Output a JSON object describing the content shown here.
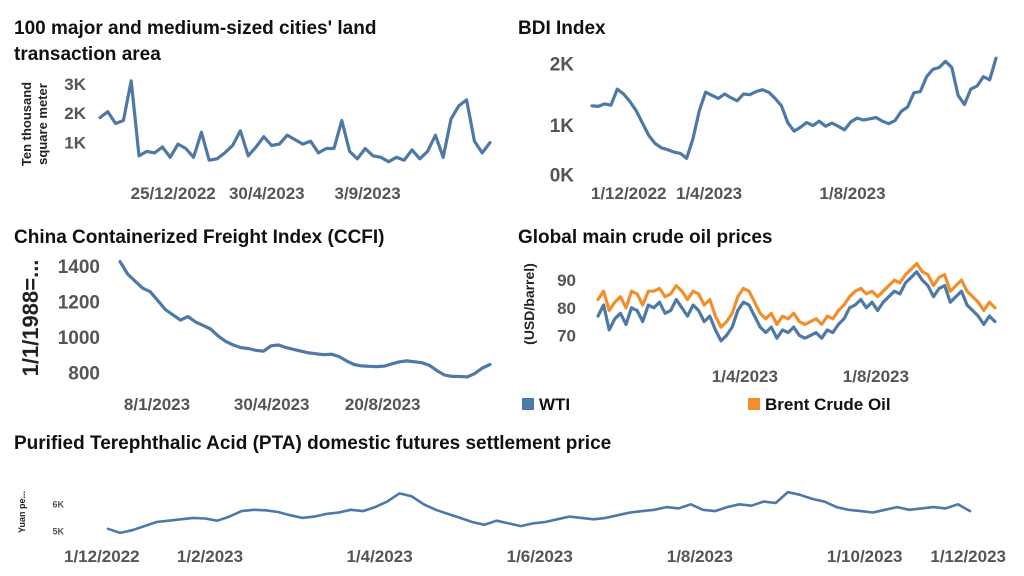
{
  "colors": {
    "blue": "#4e79a7",
    "orange": "#f28e2b"
  },
  "chart_data": [
    {
      "id": "land",
      "type": "line",
      "title": "100 major and medium-sized cities' land transaction area",
      "ylabel": "Ten thousand square meter",
      "yticks": [
        {
          "v": 3000,
          "label": "3K"
        },
        {
          "v": 2000,
          "label": "2K"
        },
        {
          "v": 1000,
          "label": "1K"
        }
      ],
      "xticks": [
        {
          "t": 0.12,
          "label": "25/12/2022"
        },
        {
          "t": 0.38,
          "label": "30/4/2023"
        },
        {
          "t": 0.66,
          "label": "3/9/2023"
        }
      ],
      "ylim": [
        0,
        3400
      ],
      "series": [
        {
          "color": "#4e79a7",
          "values": [
            1850,
            2050,
            1650,
            1750,
            3100,
            550,
            700,
            650,
            850,
            500,
            950,
            800,
            500,
            1350,
            400,
            450,
            650,
            900,
            1400,
            550,
            850,
            1200,
            900,
            950,
            1250,
            1100,
            950,
            1050,
            650,
            800,
            800,
            1750,
            700,
            450,
            800,
            550,
            500,
            350,
            500,
            400,
            750,
            450,
            700,
            1250,
            500,
            1800,
            2250,
            2450,
            1050,
            650,
            1000
          ]
        }
      ]
    },
    {
      "id": "bdi",
      "type": "line",
      "title": "BDI Index",
      "yticks": [
        {
          "v": 2000,
          "label": "2K"
        },
        {
          "v": 1000,
          "label": "1K"
        },
        {
          "v": 200,
          "label": "0K"
        }
      ],
      "xticks": [
        {
          "t": 0.04,
          "label": "1/12/2022"
        },
        {
          "t": 0.32,
          "label": "1/4/2023"
        },
        {
          "t": 0.66,
          "label": "1/8/2023"
        }
      ],
      "ylim": [
        0,
        2200
      ],
      "series": [
        {
          "color": "#4e79a7",
          "values": [
            1330,
            1320,
            1360,
            1340,
            1600,
            1520,
            1400,
            1250,
            1050,
            850,
            720,
            650,
            620,
            580,
            560,
            480,
            800,
            1250,
            1550,
            1500,
            1450,
            1520,
            1460,
            1410,
            1520,
            1510,
            1560,
            1590,
            1550,
            1450,
            1330,
            1060,
            920,
            980,
            1060,
            1010,
            1080,
            1000,
            1050,
            1000,
            940,
            1070,
            1130,
            1100,
            1120,
            1140,
            1080,
            1040,
            1090,
            1240,
            1310,
            1540,
            1560,
            1800,
            1920,
            1950,
            2050,
            1950,
            1500,
            1350,
            1600,
            1650,
            1800,
            1750,
            2100
          ]
        }
      ]
    },
    {
      "id": "ccfi",
      "type": "line",
      "title": "China Containerized Freight Index (CCFI)",
      "ylabel": "1/1/1988=...",
      "yticks": [
        {
          "v": 1400,
          "label": "1400"
        },
        {
          "v": 1200,
          "label": "1200"
        },
        {
          "v": 1000,
          "label": "1000"
        },
        {
          "v": 800,
          "label": "800"
        }
      ],
      "xticks": [
        {
          "t": 0.1,
          "label": "8/1/2023"
        },
        {
          "t": 0.41,
          "label": "30/4/2023"
        },
        {
          "t": 0.71,
          "label": "20/8/2023"
        }
      ],
      "ylim": [
        740,
        1450
      ],
      "series": [
        {
          "color": "#4e79a7",
          "values": [
            1430,
            1360,
            1320,
            1280,
            1260,
            1210,
            1160,
            1130,
            1100,
            1120,
            1090,
            1070,
            1050,
            1010,
            980,
            960,
            945,
            940,
            930,
            925,
            955,
            960,
            945,
            935,
            925,
            915,
            910,
            905,
            908,
            895,
            870,
            850,
            842,
            840,
            838,
            841,
            853,
            865,
            870,
            865,
            860,
            845,
            815,
            790,
            783,
            782,
            780,
            800,
            830,
            850
          ]
        }
      ]
    },
    {
      "id": "oil",
      "type": "line",
      "title": "Global main crude oil prices",
      "ylabel": "(USD/barrel)",
      "yticks": [
        {
          "v": 90,
          "label": "90"
        },
        {
          "v": 80,
          "label": "80"
        },
        {
          "v": 70,
          "label": "70"
        }
      ],
      "xticks": [
        {
          "t": 0.37,
          "label": "1/4/2023"
        },
        {
          "t": 0.7,
          "label": "1/8/2023"
        }
      ],
      "ylim": [
        64,
        98
      ],
      "legend": [
        {
          "name": "WTI",
          "color": "#4e79a7"
        },
        {
          "name": "Brent Crude Oil",
          "color": "#f28e2b"
        }
      ],
      "series": [
        {
          "name": "WTI",
          "color": "#4e79a7",
          "values": [
            77,
            81,
            72,
            76,
            78,
            74,
            80,
            79,
            75,
            81,
            80,
            82,
            78,
            79,
            83,
            80,
            77,
            81,
            79,
            75,
            77,
            72,
            68,
            70,
            73,
            79,
            82,
            81,
            77,
            73,
            71,
            73,
            69,
            72,
            71,
            73,
            70,
            69,
            70,
            71,
            69,
            72,
            71,
            74,
            76,
            80,
            81,
            83,
            80,
            82,
            79,
            82,
            84,
            86,
            85,
            89,
            91,
            93,
            90,
            88,
            84,
            87,
            88,
            82,
            84,
            86,
            81,
            79,
            77,
            74,
            77,
            75
          ]
        },
        {
          "name": "Brent",
          "color": "#f28e2b",
          "values": [
            83,
            86,
            79,
            82,
            84,
            80,
            86,
            85,
            81,
            86,
            86,
            87,
            84,
            85,
            88,
            86,
            83,
            86,
            85,
            81,
            83,
            77,
            73,
            75,
            78,
            84,
            87,
            86,
            82,
            78,
            76,
            78,
            74,
            77,
            76,
            78,
            75,
            74,
            75,
            76,
            74,
            77,
            76,
            79,
            81,
            84,
            86,
            87,
            85,
            86,
            84,
            86,
            88,
            90,
            89,
            92,
            94,
            96,
            93,
            92,
            88,
            91,
            92,
            86,
            88,
            90,
            86,
            84,
            82,
            79,
            82,
            80
          ]
        }
      ]
    },
    {
      "id": "pta",
      "type": "line",
      "title": "Purified Terephthalic Acid (PTA) domestic futures settlement price",
      "ylabel": "Yuan pe...",
      "yticks": [
        {
          "v": 6000,
          "label": "6K"
        },
        {
          "v": 5000,
          "label": "5K"
        }
      ],
      "xticks": [
        {
          "t": 0.0,
          "label": "1/12/2022"
        },
        {
          "t": 0.155,
          "label": "1/2/2023"
        },
        {
          "t": 0.335,
          "label": "1/4/2023"
        },
        {
          "t": 0.505,
          "label": "1/6/2023"
        },
        {
          "t": 0.675,
          "label": "1/8/2023"
        },
        {
          "t": 0.85,
          "label": "1/10/2023"
        },
        {
          "t": 1.0,
          "label": "1/12/2023"
        }
      ],
      "ylim": [
        4800,
        6600
      ],
      "series": [
        {
          "color": "#4e79a7",
          "values": [
            5100,
            4950,
            5050,
            5200,
            5350,
            5400,
            5450,
            5500,
            5480,
            5400,
            5550,
            5750,
            5800,
            5780,
            5720,
            5600,
            5500,
            5550,
            5650,
            5700,
            5800,
            5750,
            5900,
            6100,
            6400,
            6300,
            6000,
            5800,
            5650,
            5500,
            5350,
            5250,
            5400,
            5300,
            5200,
            5300,
            5350,
            5450,
            5550,
            5500,
            5450,
            5500,
            5600,
            5700,
            5750,
            5800,
            5900,
            5850,
            6000,
            5800,
            5750,
            5900,
            6000,
            5950,
            6100,
            6050,
            6450,
            6350,
            6200,
            6100,
            5900,
            5800,
            5750,
            5700,
            5800,
            5900,
            5800,
            5850,
            5900,
            5850,
            6000,
            5750
          ]
        }
      ]
    }
  ]
}
